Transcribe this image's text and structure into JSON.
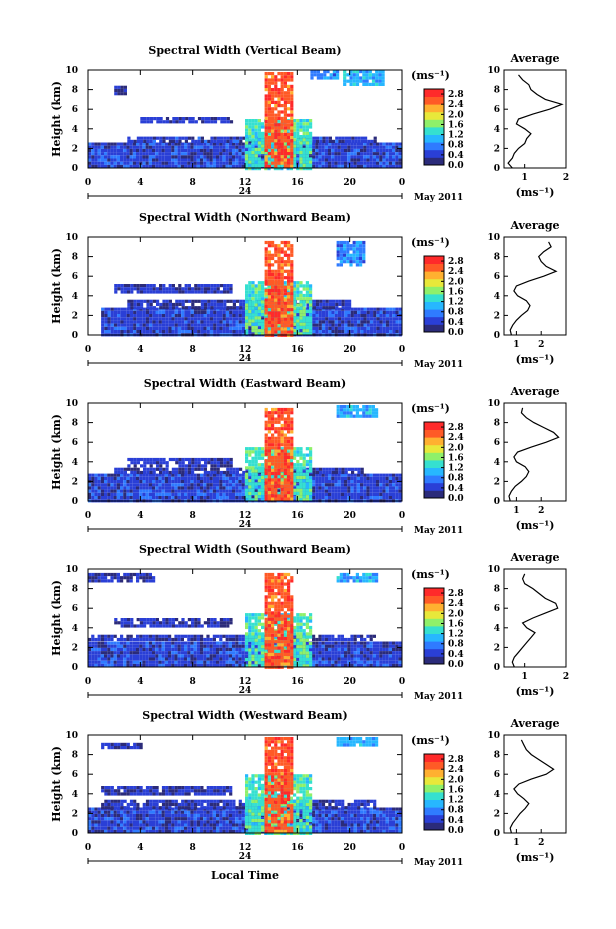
{
  "figure": {
    "xlabel": "Local Time",
    "date_label": "May 2011",
    "day_label": "24",
    "ylabel": "Height (km)",
    "unit_label": "(ms⁻¹)",
    "avg_title": "Average",
    "avg_xlabel": "(ms⁻¹)",
    "colorbar_ticks": [
      "0.0",
      "0.4",
      "0.8",
      "1.2",
      "1.6",
      "2.0",
      "2.4",
      "2.8"
    ],
    "colorbar_colors": [
      "#2b2b7a",
      "#2a3fd6",
      "#2f7bff",
      "#27b7ff",
      "#35e0d0",
      "#8ff06a",
      "#e8e83a",
      "#ffb030",
      "#ff5a26",
      "#ff2a2a"
    ]
  },
  "chart_data": [
    {
      "type": "heatmap",
      "title": "Spectral Width (Vertical Beam)",
      "xlabel": "Local Time",
      "ylabel": "Height (km)",
      "x_ticks": [
        "0",
        "4",
        "8",
        "12",
        "16",
        "20",
        "0"
      ],
      "y_ticks": [
        "0",
        "2",
        "4",
        "6",
        "8",
        "10"
      ],
      "xlim": [
        0,
        24
      ],
      "ylim": [
        0,
        10
      ],
      "colorbar_ticks": [
        "0.0",
        "0.4",
        "0.8",
        "1.2",
        "1.6",
        "2.0",
        "2.4",
        "2.8"
      ],
      "colorbar_range": [
        0,
        3.0
      ],
      "regions": [
        {
          "t": [
            0,
            24
          ],
          "h": [
            0,
            2.6
          ],
          "v": 0.45
        },
        {
          "t": [
            3,
            22
          ],
          "h": [
            2.6,
            3.2
          ],
          "v": 0.4
        },
        {
          "t": [
            4,
            11
          ],
          "h": [
            4.6,
            5.2
          ],
          "v": 0.35
        },
        {
          "t": [
            12,
            17
          ],
          "h": [
            0,
            5
          ],
          "v": 1.4
        },
        {
          "t": [
            13.5,
            15.5
          ],
          "h": [
            0,
            9.8
          ],
          "v": 2.6
        },
        {
          "t": [
            2,
            3
          ],
          "h": [
            7.4,
            8.4
          ],
          "v": 0.3
        },
        {
          "t": [
            19.5,
            22.5
          ],
          "h": [
            8.5,
            10
          ],
          "v": 1.0
        },
        {
          "t": [
            17,
            19
          ],
          "h": [
            9.2,
            10
          ],
          "v": 0.8
        }
      ],
      "average": {
        "xlim": [
          0.5,
          2.0
        ],
        "x_ticks": [
          "1",
          "2"
        ],
        "heights": [
          0,
          0.5,
          1,
          1.5,
          2,
          2.5,
          3,
          3.5,
          4,
          4.5,
          5,
          5.5,
          6,
          6.5,
          7,
          7.5,
          8,
          8.5,
          9,
          9.5
        ],
        "values": [
          0.7,
          0.6,
          0.7,
          0.75,
          0.85,
          1.0,
          1.05,
          1.15,
          1.0,
          0.8,
          0.85,
          1.2,
          1.6,
          1.9,
          1.5,
          1.3,
          1.15,
          1.1,
          0.95,
          0.85
        ]
      }
    },
    {
      "type": "heatmap",
      "title": "Spectral Width (Northward Beam)",
      "xlabel": "Local Time",
      "ylabel": "Height (km)",
      "x_ticks": [
        "0",
        "4",
        "8",
        "12",
        "16",
        "20",
        "0"
      ],
      "y_ticks": [
        "0",
        "2",
        "4",
        "6",
        "8",
        "10"
      ],
      "xlim": [
        0,
        24
      ],
      "ylim": [
        0,
        10
      ],
      "colorbar_ticks": [
        "0.0",
        "0.4",
        "0.8",
        "1.2",
        "1.6",
        "2.0",
        "2.4",
        "2.8"
      ],
      "colorbar_range": [
        0,
        3.0
      ],
      "regions": [
        {
          "t": [
            1,
            24
          ],
          "h": [
            0,
            2.8
          ],
          "v": 0.45
        },
        {
          "t": [
            3,
            20
          ],
          "h": [
            2.8,
            3.6
          ],
          "v": 0.35
        },
        {
          "t": [
            2,
            11
          ],
          "h": [
            4.2,
            5.2
          ],
          "v": 0.35
        },
        {
          "t": [
            12,
            17
          ],
          "h": [
            0,
            5.5
          ],
          "v": 1.4
        },
        {
          "t": [
            13.5,
            15.5
          ],
          "h": [
            0,
            9.6
          ],
          "v": 2.6
        },
        {
          "t": [
            19,
            21
          ],
          "h": [
            7.2,
            9.6
          ],
          "v": 0.8
        }
      ],
      "average": {
        "xlim": [
          0.5,
          3.0
        ],
        "x_ticks": [
          "1",
          "2"
        ],
        "heights": [
          0,
          0.5,
          1,
          1.5,
          2,
          2.5,
          3,
          3.5,
          4,
          4.5,
          5,
          5.5,
          6,
          6.5,
          7,
          7.5,
          8,
          8.5,
          9,
          9.5
        ],
        "values": [
          0.8,
          0.75,
          0.85,
          1.0,
          1.2,
          1.45,
          1.55,
          1.4,
          1.05,
          0.9,
          1.0,
          1.5,
          2.1,
          2.6,
          2.2,
          2.0,
          1.9,
          2.1,
          2.4,
          2.3
        ]
      }
    },
    {
      "type": "heatmap",
      "title": "Spectral Width (Eastward Beam)",
      "xlabel": "Local Time",
      "ylabel": "Height (km)",
      "x_ticks": [
        "0",
        "4",
        "8",
        "12",
        "16",
        "20",
        "0"
      ],
      "y_ticks": [
        "0",
        "2",
        "4",
        "6",
        "8",
        "10"
      ],
      "xlim": [
        0,
        24
      ],
      "ylim": [
        0,
        10
      ],
      "colorbar_ticks": [
        "0.0",
        "0.4",
        "0.8",
        "1.2",
        "1.6",
        "2.0",
        "2.4",
        "2.8"
      ],
      "colorbar_range": [
        0,
        3.0
      ],
      "regions": [
        {
          "t": [
            0,
            24
          ],
          "h": [
            0,
            2.8
          ],
          "v": 0.45
        },
        {
          "t": [
            2,
            21
          ],
          "h": [
            2.8,
            3.4
          ],
          "v": 0.35
        },
        {
          "t": [
            3,
            11
          ],
          "h": [
            3.6,
            4.4
          ],
          "v": 0.35
        },
        {
          "t": [
            12,
            17
          ],
          "h": [
            0,
            5.5
          ],
          "v": 1.4
        },
        {
          "t": [
            13.5,
            15.5
          ],
          "h": [
            0,
            9.5
          ],
          "v": 2.6
        },
        {
          "t": [
            19,
            22
          ],
          "h": [
            8.6,
            9.8
          ],
          "v": 1.0
        }
      ],
      "average": {
        "xlim": [
          0.5,
          3.0
        ],
        "x_ticks": [
          "1",
          "2"
        ],
        "heights": [
          0,
          0.5,
          1,
          1.5,
          2,
          2.5,
          3,
          3.5,
          4,
          4.5,
          5,
          5.5,
          6,
          6.5,
          7,
          7.5,
          8,
          8.5,
          9,
          9.5
        ],
        "values": [
          0.75,
          0.7,
          0.8,
          0.95,
          1.2,
          1.4,
          1.5,
          1.35,
          1.0,
          0.9,
          1.05,
          1.6,
          2.2,
          2.7,
          2.5,
          2.1,
          1.7,
          1.4,
          1.2,
          1.25
        ]
      }
    },
    {
      "type": "heatmap",
      "title": "Spectral Width (Southward Beam)",
      "xlabel": "Local Time",
      "ylabel": "Height (km)",
      "x_ticks": [
        "0",
        "4",
        "8",
        "12",
        "16",
        "20",
        "0"
      ],
      "y_ticks": [
        "0",
        "2",
        "4",
        "6",
        "8",
        "10"
      ],
      "xlim": [
        0,
        24
      ],
      "ylim": [
        0,
        10
      ],
      "colorbar_ticks": [
        "0.0",
        "0.4",
        "0.8",
        "1.2",
        "1.6",
        "2.0",
        "2.4",
        "2.8"
      ],
      "colorbar_range": [
        0,
        3.0
      ],
      "regions": [
        {
          "t": [
            0,
            24
          ],
          "h": [
            0,
            2.6
          ],
          "v": 0.45
        },
        {
          "t": [
            0,
            22
          ],
          "h": [
            2.6,
            3.3
          ],
          "v": 0.35
        },
        {
          "t": [
            2,
            11
          ],
          "h": [
            4.2,
            5.0
          ],
          "v": 0.35
        },
        {
          "t": [
            0,
            5
          ],
          "h": [
            8.6,
            9.6
          ],
          "v": 0.35
        },
        {
          "t": [
            12,
            17
          ],
          "h": [
            0,
            5.5
          ],
          "v": 1.4
        },
        {
          "t": [
            13.5,
            15.5
          ],
          "h": [
            0,
            9.6
          ],
          "v": 2.6
        },
        {
          "t": [
            19,
            22
          ],
          "h": [
            8.6,
            9.6
          ],
          "v": 1.0
        }
      ],
      "average": {
        "xlim": [
          0.5,
          2.0
        ],
        "x_ticks": [
          "1",
          "2"
        ],
        "heights": [
          0,
          0.5,
          1,
          1.5,
          2,
          2.5,
          3,
          3.5,
          4,
          4.5,
          5,
          5.5,
          6,
          6.5,
          7,
          7.5,
          8,
          8.5,
          9,
          9.5
        ],
        "values": [
          0.75,
          0.7,
          0.75,
          0.85,
          0.95,
          1.05,
          1.15,
          1.25,
          1.05,
          0.95,
          1.2,
          1.5,
          1.8,
          1.75,
          1.5,
          1.35,
          1.2,
          1.0,
          0.95,
          1.0
        ]
      }
    },
    {
      "type": "heatmap",
      "title": "Spectral Width (Westward Beam)",
      "xlabel": "Local Time",
      "ylabel": "Height (km)",
      "x_ticks": [
        "0",
        "4",
        "8",
        "12",
        "16",
        "20",
        "0"
      ],
      "y_ticks": [
        "0",
        "2",
        "4",
        "6",
        "8",
        "10"
      ],
      "xlim": [
        0,
        24
      ],
      "ylim": [
        0,
        10
      ],
      "colorbar_ticks": [
        "0.0",
        "0.4",
        "0.8",
        "1.2",
        "1.6",
        "2.0",
        "2.4",
        "2.8"
      ],
      "colorbar_range": [
        0,
        3.0
      ],
      "regions": [
        {
          "t": [
            0,
            24
          ],
          "h": [
            0,
            2.6
          ],
          "v": 0.45
        },
        {
          "t": [
            1,
            22
          ],
          "h": [
            2.6,
            3.4
          ],
          "v": 0.35
        },
        {
          "t": [
            1,
            11
          ],
          "h": [
            4.0,
            4.8
          ],
          "v": 0.35
        },
        {
          "t": [
            1,
            4
          ],
          "h": [
            8.6,
            9.2
          ],
          "v": 0.35
        },
        {
          "t": [
            12,
            17
          ],
          "h": [
            0,
            6.0
          ],
          "v": 1.4
        },
        {
          "t": [
            13.5,
            15.5
          ],
          "h": [
            0,
            9.8
          ],
          "v": 2.6
        },
        {
          "t": [
            19,
            22
          ],
          "h": [
            8.8,
            9.8
          ],
          "v": 1.0
        }
      ],
      "average": {
        "xlim": [
          0.5,
          3.0
        ],
        "x_ticks": [
          "1",
          "2"
        ],
        "heights": [
          0,
          0.5,
          1,
          1.5,
          2,
          2.5,
          3,
          3.5,
          4,
          4.5,
          5,
          5.5,
          6,
          6.5,
          7,
          7.5,
          8,
          8.5,
          9,
          9.5
        ],
        "values": [
          0.8,
          0.75,
          0.85,
          1.0,
          1.15,
          1.35,
          1.5,
          1.3,
          1.05,
          0.9,
          1.1,
          1.6,
          2.2,
          2.5,
          2.2,
          1.9,
          1.6,
          1.4,
          1.3,
          1.2
        ]
      }
    }
  ]
}
